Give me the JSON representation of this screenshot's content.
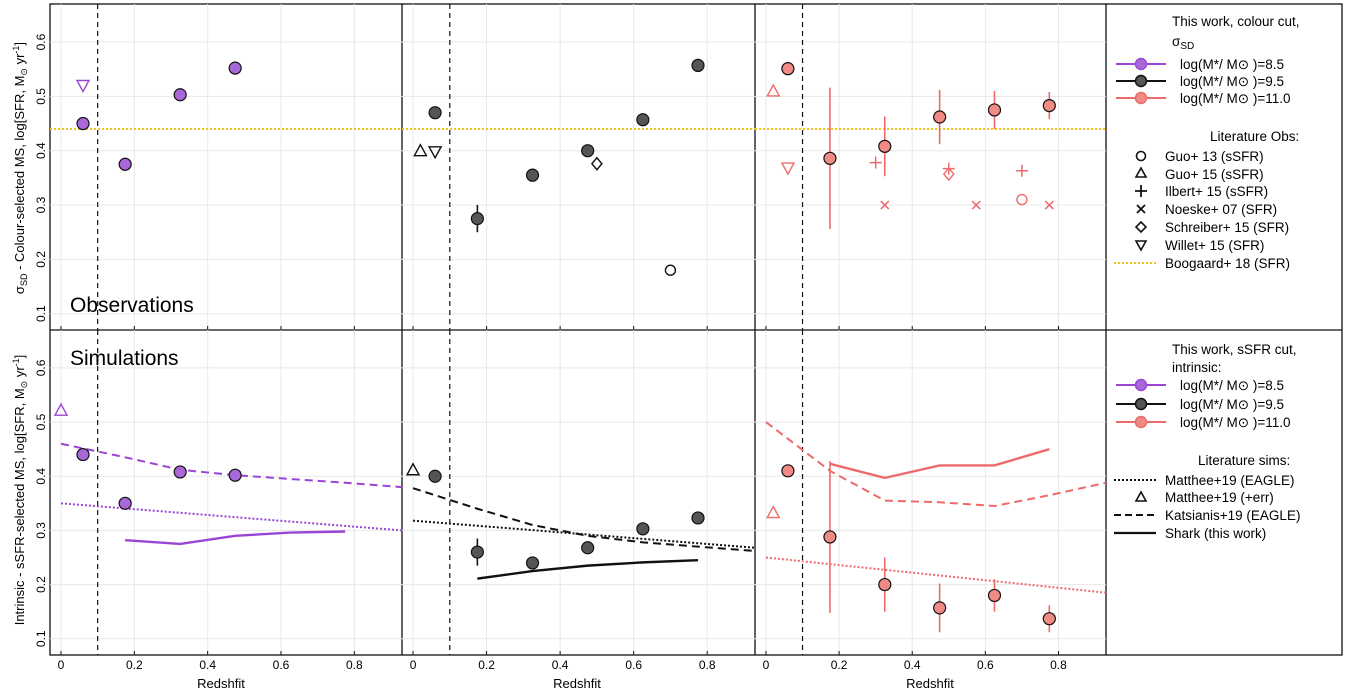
{
  "figure": {
    "top_ylabel_main": "σ",
    "top_ylabel_sub": "SD",
    "top_ylabel_rest": " - Colour-selected MS, log[SFR, M",
    "top_ylabel_unit": " yr",
    "top_ylabel_exp": "-1",
    "top_ylabel_close": "]",
    "bottom_ylabel_text": "Intrinsic - sSFR-selected MS, log[SFR, M",
    "bottom_ylabel_unit": " yr",
    "bottom_ylabel_exp": "-1",
    "bottom_ylabel_close": "]",
    "sun_symbol": "⊙",
    "xlabel": "Redshfit",
    "row_labels": [
      "Observations",
      "Simulations"
    ]
  },
  "colors": {
    "purple": "#9b45d6",
    "purple_fill": "#a868d8",
    "black": "#111111",
    "black_fill": "#555555",
    "red": "#ee6a6a",
    "red_fill": "#f08a84",
    "gold": "#f0c419",
    "grid": "#e8e8e8"
  },
  "legend_top": {
    "title_line1": "This work, colour cut,",
    "title_sym": "σ",
    "title_sub": "SD",
    "entries": [
      {
        "label": "log(M*/ M⊙ )=8.5",
        "color": "purple"
      },
      {
        "label": "log(M*/ M⊙ )=9.5",
        "color": "black"
      },
      {
        "label": "log(M*/ M⊙ )=11.0",
        "color": "red"
      }
    ],
    "lit_title": "Literature Obs:",
    "lit_entries": [
      {
        "label": "Guo+ 13 (sSFR)",
        "marker": "circle"
      },
      {
        "label": "Guo+ 15 (sSFR)",
        "marker": "triangle-up"
      },
      {
        "label": "Ilbert+ 15 (sSFR)",
        "marker": "plus"
      },
      {
        "label": "Noeske+ 07 (SFR)",
        "marker": "cross"
      },
      {
        "label": "Schreiber+ 15 (SFR)",
        "marker": "diamond"
      },
      {
        "label": "Willet+ 15 (SFR)",
        "marker": "triangle-down"
      },
      {
        "label": "Boogaard+ 18 (SFR)",
        "marker": "gold-dotted-line"
      }
    ]
  },
  "legend_bottom": {
    "title_line1": "This work, sSFR cut,",
    "title_line2": "intrinsic:",
    "entries": [
      {
        "label": "log(M*/ M⊙ )=8.5",
        "color": "purple"
      },
      {
        "label": "log(M*/ M⊙ )=9.5",
        "color": "black"
      },
      {
        "label": "log(M*/ M⊙ )=11.0",
        "color": "red"
      }
    ],
    "lit_title": "Literature sims:",
    "lit_entries": [
      {
        "label": "Matthee+19 (EAGLE)",
        "marker": "dotted-line"
      },
      {
        "label": "Matthee+19 (+err)",
        "marker": "triangle-up"
      },
      {
        "label": "Katsianis+19 (EAGLE)",
        "marker": "dashed-line"
      },
      {
        "label": "Shark (this work)",
        "marker": "solid-line"
      }
    ]
  },
  "chart_data": [
    {
      "type": "scatter",
      "panel": "top-left",
      "row_label": "Observations",
      "xlim": [
        -0.03,
        0.93
      ],
      "ylim": [
        0.07,
        0.67
      ],
      "xticks": [],
      "yticks": [
        0.1,
        0.2,
        0.3,
        0.4,
        0.5,
        0.6
      ],
      "grid": true,
      "vline": 0.1,
      "hline": 0.44,
      "hline_color": "gold",
      "series": [
        {
          "name": "log(M*/ M⊙ )=8.5",
          "kind": "points",
          "color": "purple",
          "x": [
            0.06,
            0.175,
            0.325,
            0.475
          ],
          "y": [
            0.45,
            0.375,
            0.503,
            0.552
          ],
          "err": [
            0,
            0,
            0,
            0
          ]
        },
        {
          "name": "Willet+ 15 (SFR)",
          "kind": "triangle-down",
          "color": "purple",
          "x": [
            0.06
          ],
          "y": [
            0.52
          ]
        }
      ]
    },
    {
      "type": "scatter",
      "panel": "top-middle",
      "xlim": [
        -0.03,
        0.93
      ],
      "ylim": [
        0.07,
        0.67
      ],
      "xticks": [],
      "yticks": [],
      "grid": true,
      "vline": 0.1,
      "hline": 0.44,
      "hline_color": "gold",
      "series": [
        {
          "name": "log(M*/ M⊙ )=9.5",
          "kind": "points",
          "color": "black",
          "x": [
            0.06,
            0.175,
            0.325,
            0.475,
            0.625,
            0.775
          ],
          "y": [
            0.47,
            0.275,
            0.355,
            0.4,
            0.457,
            0.557
          ],
          "err": [
            0,
            0.025,
            0,
            0,
            0,
            0
          ]
        },
        {
          "name": "Guo+ 15 (sSFR)",
          "kind": "triangle-up",
          "color": "black",
          "x": [
            0.02
          ],
          "y": [
            0.4
          ]
        },
        {
          "name": "Willet+ 15 (SFR)",
          "kind": "triangle-down",
          "color": "black",
          "x": [
            0.06
          ],
          "y": [
            0.398
          ]
        },
        {
          "name": "Schreiber+ 15 (SFR)",
          "kind": "diamond",
          "color": "black",
          "x": [
            0.5
          ],
          "y": [
            0.376
          ]
        },
        {
          "name": "Guo+ 13 (sSFR)",
          "kind": "circle",
          "color": "black",
          "x": [
            0.7
          ],
          "y": [
            0.18
          ]
        }
      ]
    },
    {
      "type": "scatter",
      "panel": "top-right",
      "xlim": [
        -0.03,
        0.93
      ],
      "ylim": [
        0.07,
        0.67
      ],
      "xticks": [],
      "yticks": [],
      "grid": true,
      "vline": 0.1,
      "hline": 0.44,
      "hline_color": "gold",
      "series": [
        {
          "name": "log(M*/ M⊙ )=11.0",
          "kind": "points",
          "color": "red",
          "x": [
            0.06,
            0.175,
            0.325,
            0.475,
            0.625,
            0.775
          ],
          "y": [
            0.551,
            0.386,
            0.408,
            0.462,
            0.475,
            0.483
          ],
          "err": [
            0,
            0.13,
            0.055,
            0.05,
            0.035,
            0.025
          ]
        },
        {
          "name": "Guo+ 15 (sSFR)",
          "kind": "triangle-up",
          "color": "red",
          "x": [
            0.02
          ],
          "y": [
            0.51
          ]
        },
        {
          "name": "Willet+ 15 (SFR)",
          "kind": "triangle-down",
          "color": "red",
          "x": [
            0.06
          ],
          "y": [
            0.368
          ]
        },
        {
          "name": "Ilbert+ 15 (sSFR)",
          "kind": "plus",
          "color": "red",
          "x": [
            0.3,
            0.5,
            0.7
          ],
          "y": [
            0.378,
            0.367,
            0.363
          ]
        },
        {
          "name": "Schreiber+ 15 (SFR)",
          "kind": "diamond",
          "color": "red",
          "x": [
            0.5
          ],
          "y": [
            0.357
          ]
        },
        {
          "name": "Noeske+ 07 (SFR)",
          "kind": "cross",
          "color": "red",
          "x": [
            0.325,
            0.575,
            0.775
          ],
          "y": [
            0.3,
            0.3,
            0.3
          ]
        },
        {
          "name": "Guo+ 13 (sSFR)",
          "kind": "circle",
          "color": "red",
          "x": [
            0.7
          ],
          "y": [
            0.31
          ]
        }
      ]
    },
    {
      "type": "line",
      "panel": "bottom-left",
      "row_label": "Simulations",
      "xlim": [
        -0.03,
        0.93
      ],
      "ylim": [
        0.07,
        0.67
      ],
      "xticks": [
        0,
        0.2,
        0.4,
        0.6,
        0.8
      ],
      "yticks": [
        0.1,
        0.2,
        0.3,
        0.4,
        0.5,
        0.6
      ],
      "grid": true,
      "vline": 0.1,
      "series": [
        {
          "name": "log(M*/ M⊙ )=8.5",
          "kind": "points",
          "color": "purple",
          "x": [
            0.06,
            0.175,
            0.325,
            0.475
          ],
          "y": [
            0.44,
            0.35,
            0.408,
            0.402
          ],
          "err": [
            0,
            0,
            0,
            0
          ]
        },
        {
          "name": "Matthee+19 (+err)",
          "kind": "triangle-up",
          "color": "purple",
          "x": [
            0.0
          ],
          "y": [
            0.522
          ]
        },
        {
          "name": "Katsianis+19 (EAGLE)",
          "kind": "dashed",
          "color": "purple",
          "x": [
            0.0,
            0.175,
            0.325,
            0.475,
            0.625,
            0.775,
            0.93
          ],
          "y": [
            0.46,
            0.435,
            0.412,
            0.402,
            0.395,
            0.388,
            0.38
          ]
        },
        {
          "name": "Matthee+19 (EAGLE)",
          "kind": "dotted",
          "color": "purple",
          "x": [
            0.0,
            0.93
          ],
          "y": [
            0.35,
            0.3
          ]
        },
        {
          "name": "Shark (this work)",
          "kind": "solid",
          "color": "purple",
          "x": [
            0.175,
            0.325,
            0.475,
            0.625,
            0.775
          ],
          "y": [
            0.282,
            0.275,
            0.29,
            0.296,
            0.298
          ]
        }
      ]
    },
    {
      "type": "line",
      "panel": "bottom-middle",
      "xlim": [
        -0.03,
        0.93
      ],
      "ylim": [
        0.07,
        0.67
      ],
      "xticks": [
        0,
        0.2,
        0.4,
        0.6,
        0.8
      ],
      "yticks": [],
      "grid": true,
      "vline": 0.1,
      "series": [
        {
          "name": "log(M*/ M⊙ )=9.5",
          "kind": "points",
          "color": "black",
          "x": [
            0.06,
            0.175,
            0.325,
            0.475,
            0.625,
            0.775
          ],
          "y": [
            0.4,
            0.26,
            0.24,
            0.268,
            0.303,
            0.323
          ],
          "err": [
            0,
            0.025,
            0,
            0,
            0,
            0
          ]
        },
        {
          "name": "Matthee+19 (+err)",
          "kind": "triangle-up",
          "color": "black",
          "x": [
            0.0
          ],
          "y": [
            0.412
          ]
        },
        {
          "name": "Katsianis+19 (EAGLE)",
          "kind": "dashed",
          "color": "black",
          "x": [
            0.0,
            0.175,
            0.325,
            0.475,
            0.625,
            0.775,
            0.93
          ],
          "y": [
            0.378,
            0.34,
            0.31,
            0.29,
            0.278,
            0.27,
            0.262
          ]
        },
        {
          "name": "Matthee+19 (EAGLE)",
          "kind": "dotted",
          "color": "black",
          "x": [
            0.0,
            0.93
          ],
          "y": [
            0.318,
            0.268
          ]
        },
        {
          "name": "Shark (this work)",
          "kind": "solid",
          "color": "black",
          "x": [
            0.175,
            0.325,
            0.475,
            0.625,
            0.775
          ],
          "y": [
            0.211,
            0.225,
            0.235,
            0.241,
            0.245
          ]
        }
      ]
    },
    {
      "type": "line",
      "panel": "bottom-right",
      "xlim": [
        -0.03,
        0.93
      ],
      "ylim": [
        0.07,
        0.67
      ],
      "xticks": [
        0,
        0.2,
        0.4,
        0.6,
        0.8
      ],
      "yticks": [],
      "grid": true,
      "vline": 0.1,
      "series": [
        {
          "name": "log(M*/ M⊙ )=11.0",
          "kind": "points",
          "color": "red",
          "x": [
            0.06,
            0.175,
            0.325,
            0.475,
            0.625,
            0.775
          ],
          "y": [
            0.41,
            0.288,
            0.2,
            0.157,
            0.18,
            0.137
          ],
          "err": [
            0,
            0.14,
            0.05,
            0.045,
            0.03,
            0.025
          ]
        },
        {
          "name": "Matthee+19 (+err)",
          "kind": "triangle-up",
          "color": "red",
          "x": [
            0.02
          ],
          "y": [
            0.333
          ]
        },
        {
          "name": "Katsianis+19 (EAGLE)",
          "kind": "dashed",
          "color": "red",
          "x": [
            0.0,
            0.175,
            0.325,
            0.475,
            0.625,
            0.775,
            0.93
          ],
          "y": [
            0.5,
            0.41,
            0.355,
            0.352,
            0.345,
            0.365,
            0.388
          ]
        },
        {
          "name": "Matthee+19 (EAGLE)",
          "kind": "dotted",
          "color": "red",
          "x": [
            0.0,
            0.93
          ],
          "y": [
            0.25,
            0.185
          ]
        },
        {
          "name": "Shark (this work)",
          "kind": "solid",
          "color": "red",
          "x": [
            0.175,
            0.325,
            0.475,
            0.625,
            0.775
          ],
          "y": [
            0.423,
            0.397,
            0.42,
            0.42,
            0.45
          ]
        }
      ]
    }
  ]
}
